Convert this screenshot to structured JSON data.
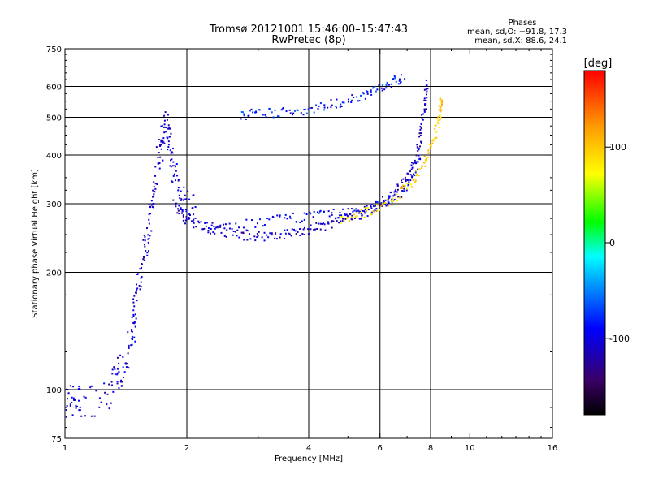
{
  "title_line1": "Tromsø 20121001 15:46:00–15:47:43",
  "title_line2": "RwPretec (8p)",
  "stats": {
    "heading": "Phases",
    "line_o": "mean, sd,O: −91.8, 17.3",
    "line_x": "mean, sd,X:  88.6, 24.1"
  },
  "chart_data": {
    "type": "scatter",
    "xlabel": "Frequency [MHz]",
    "ylabel": "Stationary phase Virtual Height [km]",
    "xscale": "log",
    "yscale": "log",
    "xlim": [
      1,
      16
    ],
    "ylim": [
      75,
      750
    ],
    "xticks": [
      1,
      2,
      4,
      6,
      8,
      10,
      16
    ],
    "xtick_labels": [
      "1",
      "2",
      "4",
      "6",
      "8",
      "10",
      "16"
    ],
    "yticks": [
      75,
      100,
      200,
      300,
      400,
      500,
      600,
      750
    ],
    "ytick_labels": [
      "75",
      "100",
      "200",
      "300",
      "400",
      "500",
      "600",
      "750"
    ],
    "grid_x": [
      2,
      4,
      6,
      8
    ],
    "grid_y": [
      100,
      200,
      300,
      400,
      500,
      600
    ],
    "grid": true,
    "colorbar": {
      "unit": "[deg]",
      "range": [
        -180,
        180
      ],
      "ticks": [
        100,
        0,
        -100
      ],
      "tick_labels": [
        "100",
        "0",
        "-100"
      ],
      "colormap": "rainbow"
    },
    "traces": [
      {
        "name_hidden": "O-lower",
        "points": [
          [
            1.0,
            94
          ],
          [
            1.05,
            94
          ],
          [
            1.1,
            93
          ],
          [
            1.27,
            96
          ],
          [
            1.34,
            110
          ],
          [
            1.39,
            112
          ],
          [
            1.45,
            130
          ],
          [
            1.48,
            145
          ],
          [
            1.5,
            170
          ],
          [
            1.55,
            200
          ],
          [
            1.58,
            240
          ],
          [
            1.62,
            270
          ],
          [
            1.66,
            320
          ],
          [
            1.7,
            380
          ],
          [
            1.74,
            440
          ],
          [
            1.78,
            480
          ],
          [
            1.82,
            420
          ],
          [
            1.86,
            360
          ],
          [
            1.92,
            320
          ],
          [
            2.0,
            300
          ],
          [
            2.1,
            285
          ]
        ]
      },
      {
        "name_hidden": "O-main",
        "points": [
          [
            1.85,
            300
          ],
          [
            2.0,
            275
          ],
          [
            2.2,
            262
          ],
          [
            2.4,
            255
          ],
          [
            2.7,
            250
          ],
          [
            3.0,
            248
          ],
          [
            3.4,
            250
          ],
          [
            3.8,
            254
          ],
          [
            4.2,
            260
          ],
          [
            4.6,
            268
          ],
          [
            5.0,
            275
          ],
          [
            5.5,
            285
          ],
          [
            6.0,
            298
          ],
          [
            6.5,
            318
          ],
          [
            7.0,
            350
          ],
          [
            7.4,
            400
          ],
          [
            7.6,
            460
          ],
          [
            7.75,
            540
          ],
          [
            7.82,
            620
          ]
        ]
      },
      {
        "name_hidden": "O-upper",
        "points": [
          [
            2.2,
            260
          ],
          [
            3.0,
            268
          ],
          [
            3.6,
            275
          ],
          [
            4.2,
            280
          ],
          [
            4.8,
            283
          ],
          [
            5.4,
            288
          ],
          [
            6.0,
            298
          ],
          [
            6.6,
            315
          ],
          [
            7.2,
            345
          ],
          [
            7.6,
            400
          ]
        ]
      },
      {
        "name_hidden": "X-main",
        "points": [
          [
            4.8,
            272
          ],
          [
            5.4,
            282
          ],
          [
            6.0,
            295
          ],
          [
            6.6,
            312
          ],
          [
            7.2,
            340
          ],
          [
            7.7,
            380
          ],
          [
            8.0,
            420
          ],
          [
            8.3,
            470
          ],
          [
            8.45,
            520
          ],
          [
            8.5,
            560
          ]
        ]
      },
      {
        "name_hidden": "F2-high",
        "points": [
          [
            2.7,
            505
          ],
          [
            3.0,
            510
          ],
          [
            3.5,
            515
          ],
          [
            4.0,
            525
          ],
          [
            4.6,
            540
          ],
          [
            5.2,
            560
          ],
          [
            5.8,
            585
          ],
          [
            6.4,
            610
          ],
          [
            6.9,
            635
          ]
        ]
      }
    ]
  }
}
